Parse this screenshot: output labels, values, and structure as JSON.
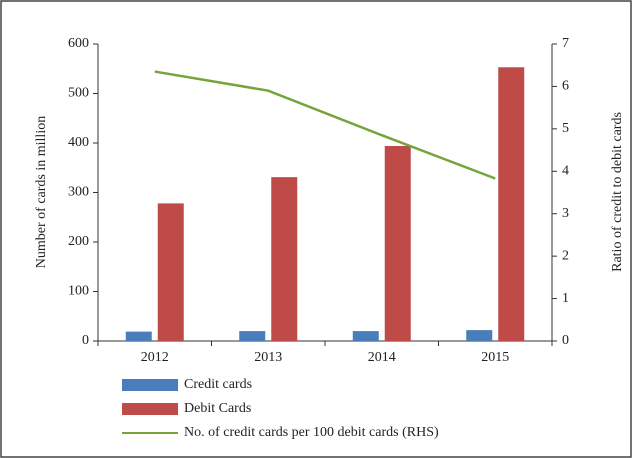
{
  "chart_data": {
    "type": "bar_line",
    "categories": [
      "2012",
      "2013",
      "2014",
      "2015"
    ],
    "series": [
      {
        "name": "Credit cards",
        "color": "#4a7ebb",
        "values": [
          19,
          20,
          20,
          22
        ]
      },
      {
        "name": "Debit Cards",
        "color": "#be4b48",
        "values": [
          278,
          331,
          394,
          553
        ]
      },
      {
        "name": "No. of credit cards per 100 debit cards (RHS)",
        "color": "#77a33c",
        "values": [
          6.35,
          5.9,
          4.85,
          3.83
        ],
        "axis": "y2",
        "type": "line"
      }
    ],
    "ylabel": "Number of cards in million",
    "y2label": "Ratio of credit to debit cards",
    "ylim": [
      0,
      600
    ],
    "yticks": [
      0,
      100,
      200,
      300,
      400,
      500,
      600
    ],
    "y2lim": [
      0,
      7
    ],
    "y2ticks": [
      0,
      1,
      2,
      3,
      4,
      5,
      6,
      7
    ]
  }
}
